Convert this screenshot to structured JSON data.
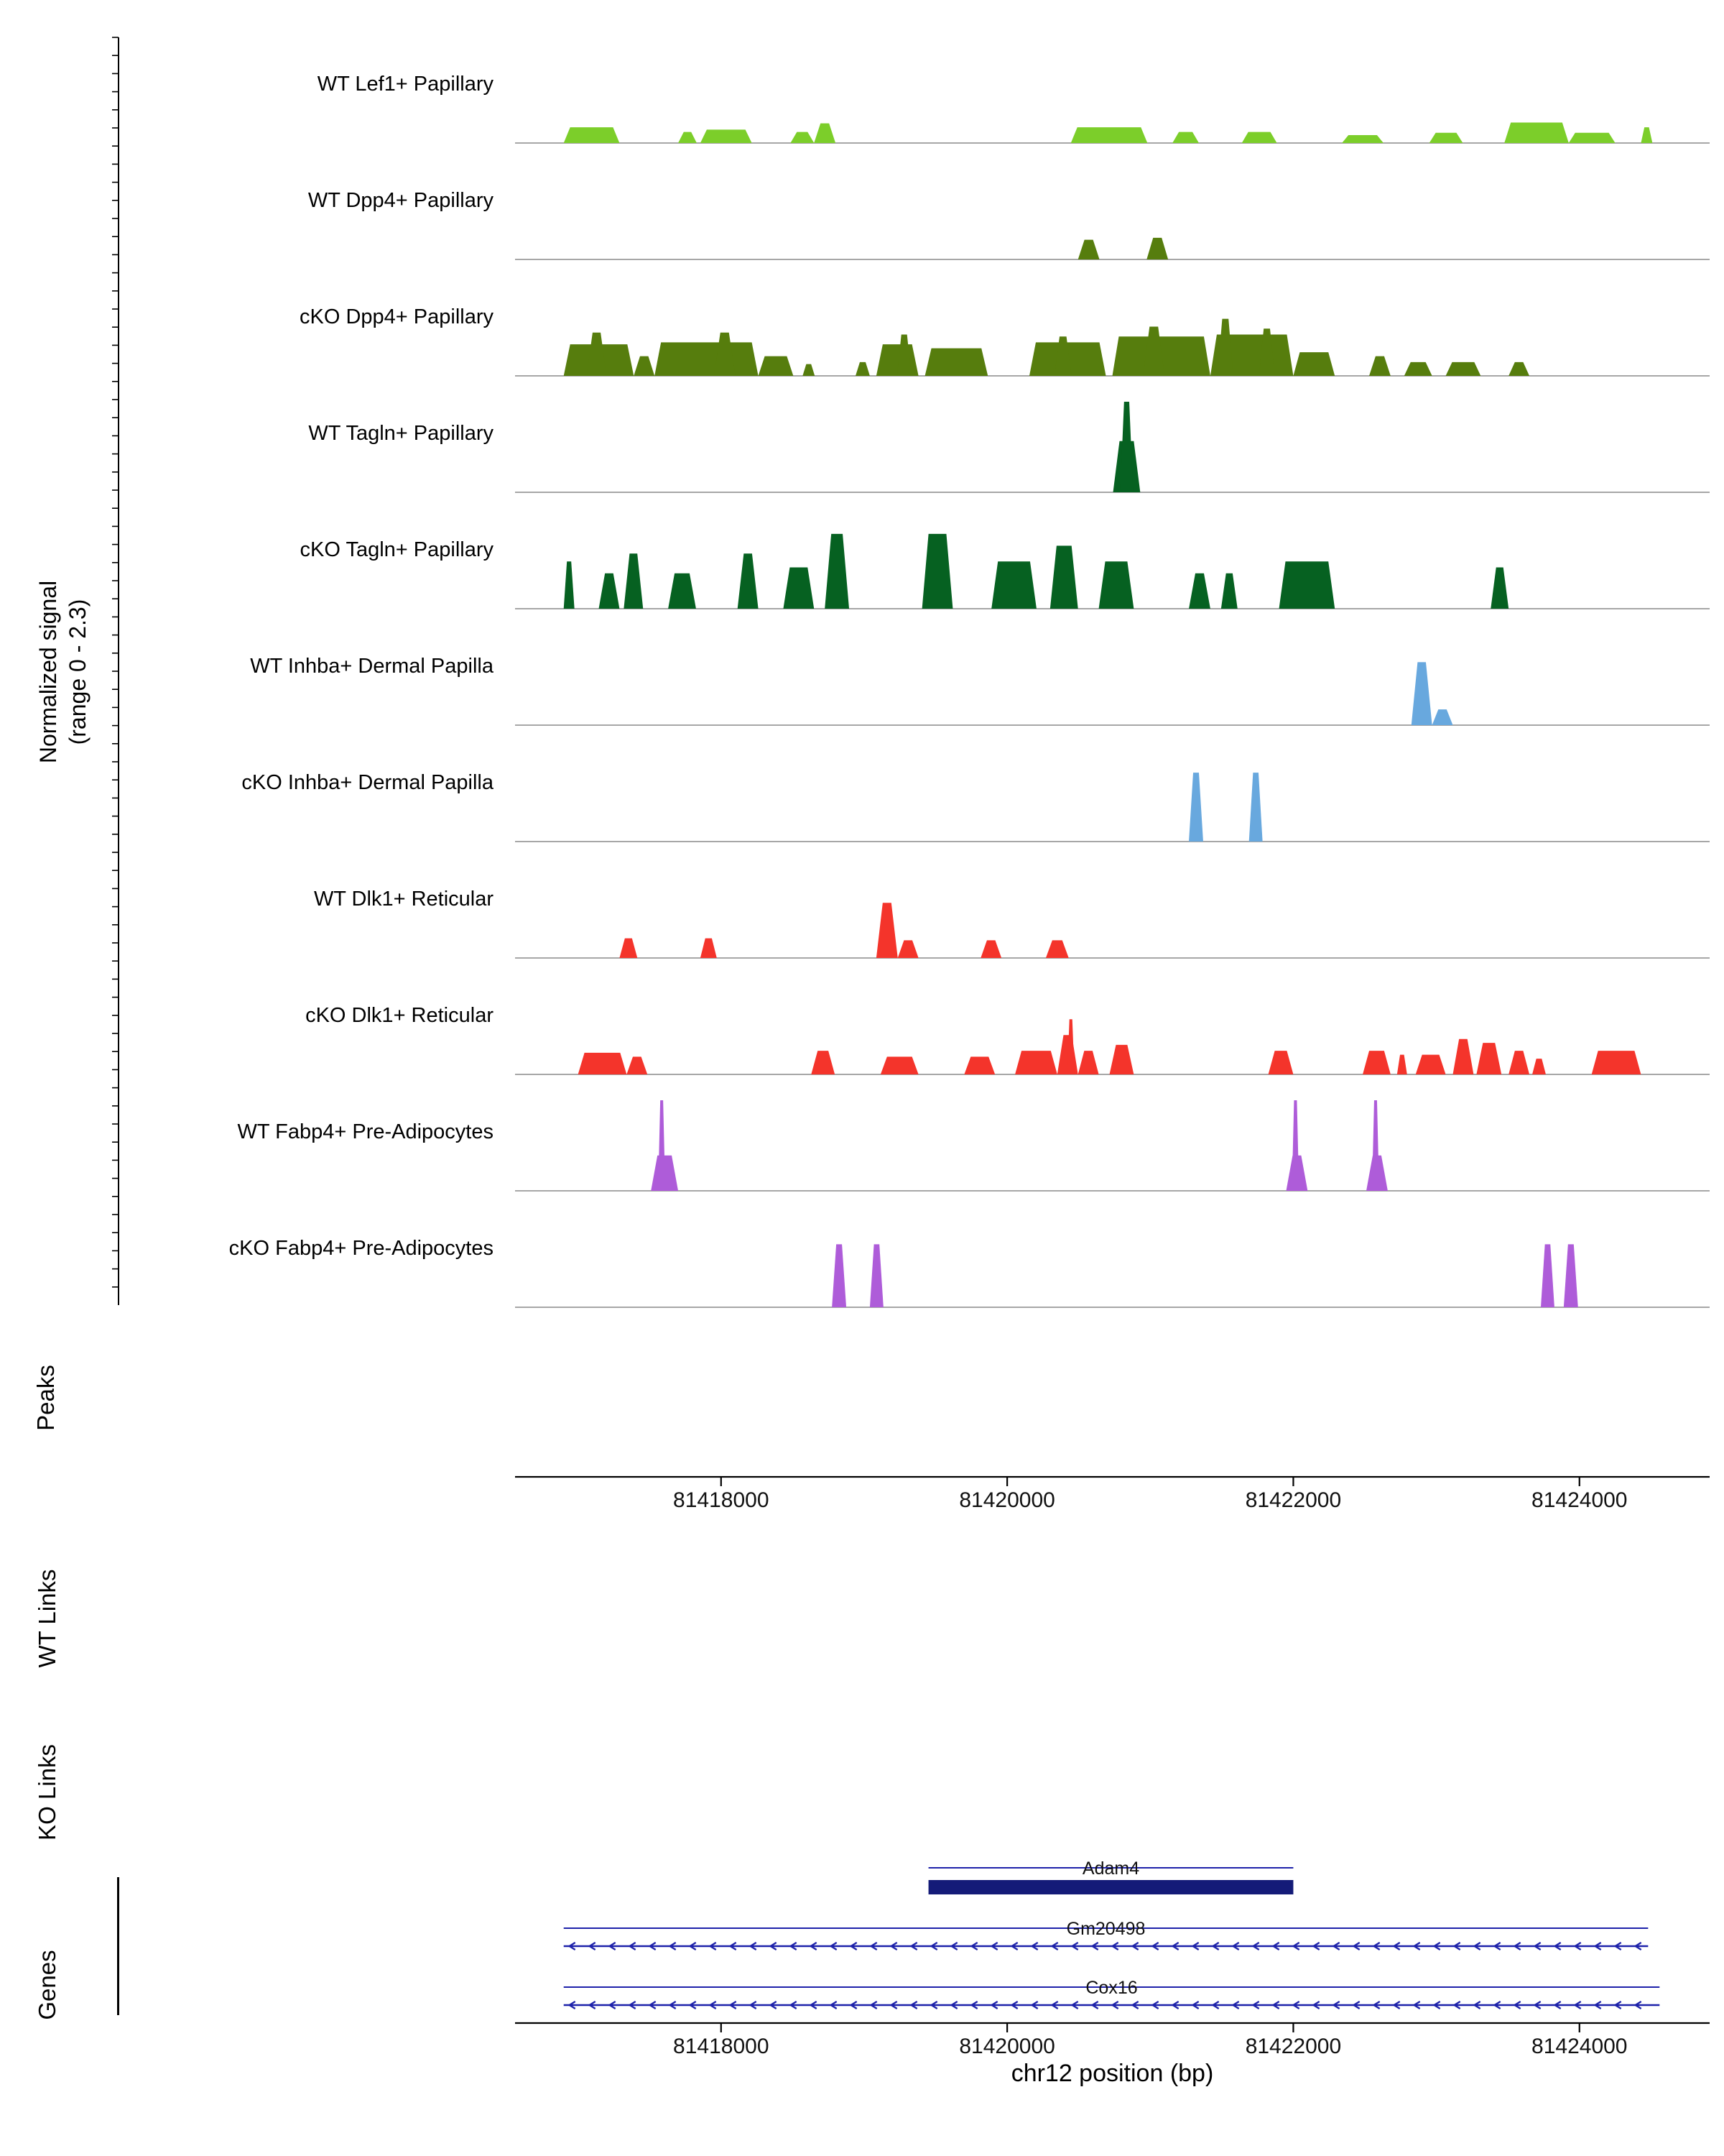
{
  "figure": {
    "ylabel_line1": "Normalized signal",
    "ylabel_line2": "(range 0 - 2.3)",
    "section_labels": {
      "peaks": "Peaks",
      "wt_links": "WT Links",
      "ko_links": "KO Links",
      "genes": "Genes"
    }
  },
  "chart_data": {
    "type": "area",
    "title": "",
    "xlabel": "chr12 position (bp)",
    "ylabel": "Normalized signal (range 0 - 2.3)",
    "x_range": [
      81416560,
      81424910
    ],
    "x_ticks": [
      81418000,
      81420000,
      81422000,
      81424000
    ],
    "y_range_per_track": [
      0,
      2.3
    ],
    "baseline_color": "#8a8a8a",
    "gene_line_color": "#1E22AA",
    "gene_box_color": "#141B78",
    "tracks": [
      {
        "name": "WT Lef1+ Papillary",
        "color": "#7CCE2A",
        "peaks": [
          [
            81416900,
            81417290,
            0.4
          ],
          [
            81417700,
            81417830,
            0.28
          ],
          [
            81417855,
            81418215,
            0.34
          ],
          [
            81418485,
            81418650,
            0.28
          ],
          [
            81418650,
            81418800,
            0.5
          ],
          [
            81420445,
            81420980,
            0.4
          ],
          [
            81421155,
            81421340,
            0.28
          ],
          [
            81421640,
            81421885,
            0.28
          ],
          [
            81422340,
            81422630,
            0.2
          ],
          [
            81422950,
            81423185,
            0.26
          ],
          [
            81423475,
            81423925,
            0.52
          ],
          [
            81423925,
            81424250,
            0.26
          ],
          [
            81424430,
            81424510,
            0.4
          ]
        ]
      },
      {
        "name": "WT Dpp4+ Papillary",
        "color": "#567D0D",
        "peaks": [
          [
            81420495,
            81420645,
            0.5
          ],
          [
            81420975,
            81421125,
            0.55
          ]
        ]
      },
      {
        "name": "cKO Dpp4+ Papillary",
        "color": "#567D0D",
        "peaks": [
          [
            81416900,
            81417390,
            0.8
          ],
          [
            81417060,
            81417200,
            1.1
          ],
          [
            81417390,
            81417535,
            0.5
          ],
          [
            81417535,
            81418260,
            0.85
          ],
          [
            81417950,
            81418100,
            1.1
          ],
          [
            81418260,
            81418505,
            0.5
          ],
          [
            81418570,
            81418655,
            0.3
          ],
          [
            81418940,
            81419040,
            0.35
          ],
          [
            81419085,
            81419380,
            0.8
          ],
          [
            81419230,
            81419330,
            1.05
          ],
          [
            81419425,
            81419865,
            0.7
          ],
          [
            81420155,
            81420690,
            0.85
          ],
          [
            81420330,
            81420450,
            1.0
          ],
          [
            81420735,
            81421420,
            1.0
          ],
          [
            81420950,
            81421100,
            1.25
          ],
          [
            81421420,
            81422000,
            1.05
          ],
          [
            81421470,
            81421580,
            1.45
          ],
          [
            81421760,
            81421870,
            1.2
          ],
          [
            81422000,
            81422290,
            0.6
          ],
          [
            81422530,
            81422680,
            0.5
          ],
          [
            81422775,
            81422970,
            0.35
          ],
          [
            81423065,
            81423310,
            0.35
          ],
          [
            81423505,
            81423650,
            0.35
          ]
        ]
      },
      {
        "name": "WT Tagln+ Papillary",
        "color": "#066121",
        "peaks": [
          [
            81420740,
            81420930,
            1.3
          ],
          [
            81420790,
            81420880,
            2.3
          ]
        ]
      },
      {
        "name": "cKO Tagln+ Papillary",
        "color": "#066121",
        "peaks": [
          [
            81416900,
            81416975,
            1.2
          ],
          [
            81417145,
            81417290,
            0.9
          ],
          [
            81417320,
            81417455,
            1.4
          ],
          [
            81417630,
            81417825,
            0.9
          ],
          [
            81418115,
            81418260,
            1.4
          ],
          [
            81418435,
            81418650,
            1.05
          ],
          [
            81418725,
            81418895,
            1.9
          ],
          [
            81419405,
            81419620,
            1.9
          ],
          [
            81419890,
            81420205,
            1.2
          ],
          [
            81420300,
            81420495,
            1.6
          ],
          [
            81420640,
            81420885,
            1.2
          ],
          [
            81421270,
            81421420,
            0.9
          ],
          [
            81421495,
            81421610,
            0.9
          ],
          [
            81421900,
            81422290,
            1.2
          ],
          [
            81423380,
            81423505,
            1.05
          ]
        ]
      },
      {
        "name": "WT Inhba+ Dermal Papilla",
        "color": "#68A8DE",
        "peaks": [
          [
            81422825,
            81422970,
            1.6
          ],
          [
            81422970,
            81423115,
            0.4
          ]
        ]
      },
      {
        "name": "cKO Inhba+ Dermal Papilla",
        "color": "#68A8DE",
        "peaks": [
          [
            81421270,
            81421370,
            1.75
          ],
          [
            81421690,
            81421785,
            1.75
          ]
        ]
      },
      {
        "name": "WT Dlk1+ Reticular",
        "color": "#F4342B",
        "peaks": [
          [
            81417290,
            81417415,
            0.5
          ],
          [
            81417855,
            81417970,
            0.5
          ],
          [
            81419085,
            81419235,
            1.4
          ],
          [
            81419235,
            81419380,
            0.45
          ],
          [
            81419815,
            81419960,
            0.45
          ],
          [
            81420270,
            81420430,
            0.45
          ]
        ]
      },
      {
        "name": "cKO Dlk1+ Reticular",
        "color": "#F4342B",
        "peaks": [
          [
            81417000,
            81417340,
            0.55
          ],
          [
            81417340,
            81417485,
            0.45
          ],
          [
            81418630,
            81418795,
            0.6
          ],
          [
            81419115,
            81419380,
            0.45
          ],
          [
            81419700,
            81419915,
            0.45
          ],
          [
            81420055,
            81420350,
            0.6
          ],
          [
            81420350,
            81420495,
            1.0
          ],
          [
            81420420,
            81420470,
            1.4
          ],
          [
            81420495,
            81420640,
            0.6
          ],
          [
            81420715,
            81420885,
            0.75
          ],
          [
            81421825,
            81422000,
            0.6
          ],
          [
            81422485,
            81422680,
            0.6
          ],
          [
            81422725,
            81422795,
            0.5
          ],
          [
            81422855,
            81423065,
            0.5
          ],
          [
            81423115,
            81423260,
            0.9
          ],
          [
            81423280,
            81423455,
            0.8
          ],
          [
            81423505,
            81423650,
            0.6
          ],
          [
            81423670,
            81423765,
            0.4
          ],
          [
            81424085,
            81424430,
            0.6
          ]
        ]
      },
      {
        "name": "WT Fabp4+ Pre-Adipocytes",
        "color": "#AE5CD9",
        "peaks": [
          [
            81417510,
            81417700,
            0.9
          ],
          [
            81417560,
            81417610,
            2.3
          ],
          [
            81421950,
            81422100,
            0.9
          ],
          [
            81421990,
            81422040,
            2.3
          ],
          [
            81422510,
            81422660,
            0.9
          ],
          [
            81422550,
            81422600,
            2.3
          ]
        ]
      },
      {
        "name": "cKO Fabp4+ Pre-Adipocytes",
        "color": "#AE5CD9",
        "peaks": [
          [
            81418775,
            81418875,
            1.6
          ],
          [
            81419040,
            81419135,
            1.6
          ],
          [
            81423730,
            81423825,
            1.6
          ],
          [
            81423890,
            81423990,
            1.6
          ]
        ]
      }
    ],
    "peaks_track": [],
    "wt_links": [],
    "ko_links": [],
    "genes": [
      {
        "name": "Adam4",
        "start": 81419450,
        "end": 81422000,
        "style": "box",
        "strand": "."
      },
      {
        "name": "Gm20498",
        "start": 81416900,
        "end": 81424480,
        "style": "line-arrows",
        "strand": "-"
      },
      {
        "name": "Cox16",
        "start": 81416900,
        "end": 81424560,
        "style": "line-arrows",
        "strand": "-"
      }
    ]
  }
}
